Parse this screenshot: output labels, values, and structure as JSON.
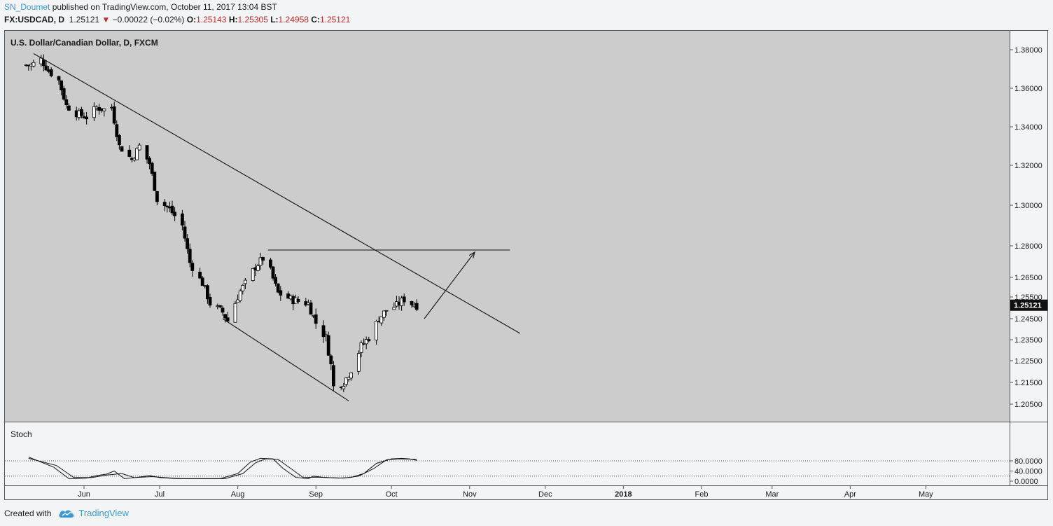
{
  "header": {
    "author": "SN_Doumet",
    "published_text": "published on TradingView.com, October 11, 2017 13:04 BST",
    "symbol": "FX:USDCAD, D",
    "last": "1.25121",
    "change": "−0.00022 (−0.02%)",
    "open_label": "O:",
    "open": "1.25143",
    "high_label": "H:",
    "high": "1.25305",
    "low_label": "L:",
    "low": "1.24958",
    "close_label": "C:",
    "close": "1.25121"
  },
  "footer": {
    "created_with": "Created with",
    "brand": "TradingView"
  },
  "colors": {
    "background": "#f2f4f6",
    "pane": "#cccccc",
    "candle_up": "#ffffff",
    "candle_down": "#000000",
    "price_tag": "#111111",
    "accent": "#3a9bd7"
  },
  "chart_data": {
    "type": "candlestick",
    "title": "U.S. Dollar/Canadian Dollar, D, FXCM",
    "price_axis_ticks": [
      "1.38000",
      "1.36000",
      "1.34000",
      "1.32000",
      "1.30000",
      "1.28000",
      "1.26500",
      "1.25500",
      "1.24500",
      "1.23500",
      "1.22500",
      "1.21500",
      "1.20500"
    ],
    "current_price_label": "1.25121",
    "time_axis_ticks": [
      "Jun",
      "Jul",
      "Aug",
      "Sep",
      "Oct",
      "Nov",
      "Dec",
      "2018",
      "Feb",
      "Mar",
      "Apr",
      "May"
    ],
    "price_path": [
      [
        "2017-05-11",
        1.372
      ],
      [
        "2017-05-15",
        1.375
      ],
      [
        "2017-05-18",
        1.369
      ],
      [
        "2017-05-22",
        1.364
      ],
      [
        "2017-05-25",
        1.351
      ],
      [
        "2017-05-29",
        1.347
      ],
      [
        "2017-06-02",
        1.345
      ],
      [
        "2017-06-06",
        1.35
      ],
      [
        "2017-06-09",
        1.349
      ],
      [
        "2017-06-12",
        1.35
      ],
      [
        "2017-06-15",
        1.33
      ],
      [
        "2017-06-20",
        1.323
      ],
      [
        "2017-06-23",
        1.33
      ],
      [
        "2017-06-27",
        1.321
      ],
      [
        "2017-06-30",
        1.303
      ],
      [
        "2017-07-05",
        1.298
      ],
      [
        "2017-07-10",
        1.29
      ],
      [
        "2017-07-13",
        1.272
      ],
      [
        "2017-07-18",
        1.262
      ],
      [
        "2017-07-21",
        1.252
      ],
      [
        "2017-07-26",
        1.248
      ],
      [
        "2017-07-28",
        1.244
      ],
      [
        "2017-08-02",
        1.258
      ],
      [
        "2017-08-08",
        1.27
      ],
      [
        "2017-08-11",
        1.274
      ],
      [
        "2017-08-14",
        1.268
      ],
      [
        "2017-08-17",
        1.257
      ],
      [
        "2017-08-22",
        1.254
      ],
      [
        "2017-08-25",
        1.253
      ],
      [
        "2017-08-29",
        1.252
      ],
      [
        "2017-09-01",
        1.243
      ],
      [
        "2017-09-05",
        1.236
      ],
      [
        "2017-09-07",
        1.223
      ],
      [
        "2017-09-08",
        1.213
      ],
      [
        "2017-09-12",
        1.215
      ],
      [
        "2017-09-15",
        1.221
      ],
      [
        "2017-09-19",
        1.232
      ],
      [
        "2017-09-22",
        1.236
      ],
      [
        "2017-09-26",
        1.245
      ],
      [
        "2017-09-29",
        1.249
      ],
      [
        "2017-10-03",
        1.251
      ],
      [
        "2017-10-06",
        1.254
      ],
      [
        "2017-10-09",
        1.252
      ],
      [
        "2017-10-11",
        1.25121
      ]
    ],
    "drawings": {
      "resistance_trendline": [
        [
          "2017-05-12",
          1.378
        ],
        [
          "2017-11-21",
          1.238
        ]
      ],
      "support_trendline": [
        [
          "2017-07-26",
          1.245
        ],
        [
          "2017-09-14",
          1.2065
        ]
      ],
      "horizontal_level": {
        "price": 1.278,
        "from": "2017-08-13",
        "to": "2017-11-17"
      },
      "arrow": [
        [
          "2017-10-14",
          1.245
        ],
        [
          "2017-11-03",
          1.277
        ]
      ]
    },
    "stochastic": {
      "label": "Stoch",
      "axis_ticks": [
        "80.0000",
        "40.0000",
        "0.0000"
      ],
      "bands": [
        80,
        20
      ],
      "k": [
        [
          "2017-05-10",
          95
        ],
        [
          "2017-05-20",
          55
        ],
        [
          "2017-05-26",
          10
        ],
        [
          "2017-06-02",
          12
        ],
        [
          "2017-06-06",
          22
        ],
        [
          "2017-06-10",
          28
        ],
        [
          "2017-06-13",
          40
        ],
        [
          "2017-06-17",
          10
        ],
        [
          "2017-06-22",
          15
        ],
        [
          "2017-06-27",
          22
        ],
        [
          "2017-07-01",
          14
        ],
        [
          "2017-07-08",
          10
        ],
        [
          "2017-07-25",
          10
        ],
        [
          "2017-08-01",
          30
        ],
        [
          "2017-08-06",
          75
        ],
        [
          "2017-08-10",
          90
        ],
        [
          "2017-08-15",
          88
        ],
        [
          "2017-08-19",
          50
        ],
        [
          "2017-08-24",
          15
        ],
        [
          "2017-08-29",
          10
        ],
        [
          "2017-08-31",
          20
        ],
        [
          "2017-09-04",
          15
        ],
        [
          "2017-09-10",
          12
        ],
        [
          "2017-09-15",
          15
        ],
        [
          "2017-09-20",
          30
        ],
        [
          "2017-09-25",
          70
        ],
        [
          "2017-10-01",
          88
        ],
        [
          "2017-10-05",
          90
        ],
        [
          "2017-10-08",
          88
        ],
        [
          "2017-10-11",
          82
        ]
      ],
      "d": [
        [
          "2017-05-10",
          90
        ],
        [
          "2017-05-21",
          62
        ],
        [
          "2017-05-28",
          14
        ],
        [
          "2017-06-04",
          14
        ],
        [
          "2017-06-10",
          24
        ],
        [
          "2017-06-16",
          30
        ],
        [
          "2017-06-21",
          14
        ],
        [
          "2017-06-28",
          18
        ],
        [
          "2017-07-03",
          14
        ],
        [
          "2017-07-10",
          10
        ],
        [
          "2017-07-27",
          10
        ],
        [
          "2017-08-03",
          30
        ],
        [
          "2017-08-08",
          72
        ],
        [
          "2017-08-12",
          88
        ],
        [
          "2017-08-17",
          86
        ],
        [
          "2017-08-22",
          50
        ],
        [
          "2017-08-27",
          14
        ],
        [
          "2017-09-01",
          16
        ],
        [
          "2017-09-06",
          14
        ],
        [
          "2017-09-12",
          12
        ],
        [
          "2017-09-18",
          20
        ],
        [
          "2017-09-24",
          50
        ],
        [
          "2017-09-29",
          84
        ],
        [
          "2017-10-04",
          88
        ],
        [
          "2017-10-11",
          86
        ]
      ]
    }
  }
}
